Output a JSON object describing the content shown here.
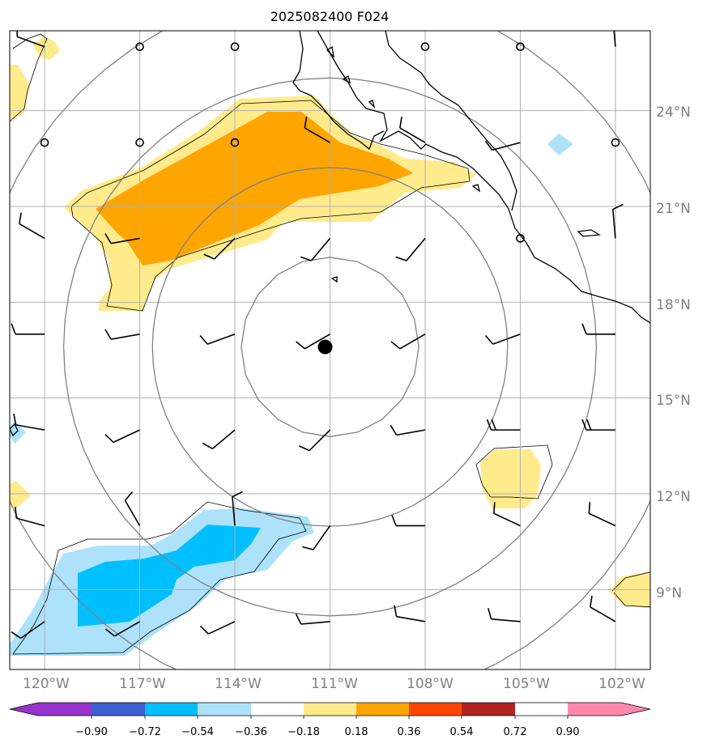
{
  "title": "2025082400 F024",
  "lat_labels": [
    "24°N",
    "21°N",
    "18°N",
    "15°N",
    "12°N",
    "9°N"
  ],
  "lon_labels": [
    "120°W",
    "117°W",
    "114°W",
    "111°W",
    "108°W",
    "105°W",
    "102°W"
  ],
  "colorbar": {
    "tick_labels": [
      "−0.90",
      "−0.72",
      "−0.54",
      "−0.36",
      "−0.18",
      "0.18",
      "0.36",
      "0.54",
      "0.72",
      "0.90"
    ],
    "colors": [
      "#9932cc",
      "#00008b",
      "#3c5fd2",
      "#00bfff",
      "#ade2fa",
      "#ffffff",
      "#ffeb8c",
      "#ffa500",
      "#ff4500",
      "#b22222",
      "#ff88aa"
    ]
  },
  "map": {
    "lon_range": [
      -121.1,
      -100.9
    ],
    "lat_range": [
      6.5,
      26.5
    ],
    "grid_lons": [
      -120,
      -117,
      -114,
      -111,
      -108,
      -105,
      -102
    ],
    "grid_lats": [
      24,
      21,
      18,
      15,
      12,
      9
    ],
    "storm_center": {
      "lon": -111.0,
      "lat": 16.6
    },
    "range_ring_radii_deg": [
      2.8,
      5.6,
      8.4,
      11.2
    ],
    "colors": {
      "grid": "#b0b0b0",
      "ring": "#808080",
      "coast": "#000000",
      "barb": "#000000",
      "frame": "#000000"
    }
  }
}
